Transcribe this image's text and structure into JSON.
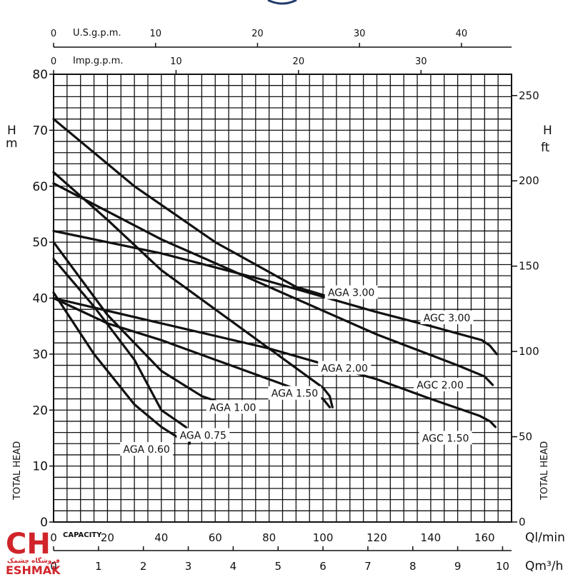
{
  "chart_data": {
    "type": "line",
    "x_unit_label": "Ql/min",
    "x_range": [
      0,
      170
    ],
    "x_ticks": [
      0,
      20,
      40,
      60,
      80,
      100,
      120,
      140,
      160
    ],
    "x_tick_labels": [
      "0",
      "20",
      "40",
      "60",
      "80",
      "100",
      "120",
      "140",
      "160"
    ],
    "capacity_label": "CAPACITY",
    "m3h_unit_label": "Qm³/h",
    "m3h_ticks": [
      0,
      1,
      2,
      3,
      4,
      5,
      6,
      7,
      8,
      9,
      10
    ],
    "m3h_tick_labels": [
      "0",
      "1",
      "2",
      "3",
      "4",
      "5",
      "6",
      "7",
      "8",
      "9",
      "10"
    ],
    "usgpm_label": "U.S.g.p.m.",
    "usgpm_ticks": [
      0,
      10,
      20,
      30,
      40
    ],
    "usgpm_tick_labels": [
      "0",
      "10",
      "20",
      "30",
      "40"
    ],
    "impgpm_label": "Imp.g.p.m.",
    "impgpm_ticks": [
      0,
      10,
      20,
      30
    ],
    "impgpm_tick_labels": [
      "0",
      "10",
      "20",
      "30"
    ],
    "y_range": [
      0,
      80
    ],
    "y_ticks": [
      0,
      10,
      20,
      30,
      40,
      50,
      60,
      70,
      80
    ],
    "y_tick_labels": [
      "0",
      "10",
      "20",
      "30",
      "40",
      "50",
      "60",
      "70",
      "80"
    ],
    "y_left_title_1": "H",
    "y_left_title_2": "m",
    "y_left_side_title": "TOTAL HEAD",
    "ft_ticks": [
      0,
      50,
      100,
      150,
      200,
      250
    ],
    "ft_tick_labels": [
      "0",
      "50",
      "100",
      "150",
      "200",
      "250"
    ],
    "y_right_title_1": "H",
    "y_right_title_2": "ft",
    "y_right_side_title": "TOTAL HEAD",
    "grid": true,
    "series": [
      {
        "name": "AGA 0.60",
        "x": [
          0,
          15,
          30,
          40,
          47.5
        ],
        "y": [
          41,
          30,
          21,
          17,
          14.7
        ]
      },
      {
        "name": "AGA 0.75",
        "x": [
          0,
          15,
          30,
          40,
          49,
          50.5,
          50.5
        ],
        "y": [
          47,
          38.5,
          29,
          20,
          17,
          16,
          14
        ]
      },
      {
        "name": "AGA 1.00",
        "x": [
          0,
          20,
          40,
          55,
          61,
          62.5
        ],
        "y": [
          50,
          37,
          27,
          22.5,
          21.5,
          20.5
        ]
      },
      {
        "name": "AGA 1.50",
        "x": [
          0,
          20,
          40,
          60,
          80,
          100,
          102.5
        ],
        "y": [
          40,
          35.5,
          32.5,
          29,
          25.5,
          22,
          20.5
        ]
      },
      {
        "name": "AGA 2.00",
        "x": [
          0,
          20,
          40,
          60,
          80,
          100,
          102.5,
          103.5
        ],
        "y": [
          62.5,
          54,
          45,
          38,
          31,
          24,
          22.5,
          20.5
        ]
      },
      {
        "name": "AGA 3.00",
        "x": [
          0,
          30,
          60,
          90,
          104
        ],
        "y": [
          72,
          60,
          50,
          42,
          40
        ]
      },
      {
        "name": "AGC 1.50",
        "x": [
          0,
          40,
          80,
          120,
          140,
          158,
          162,
          164
        ],
        "y": [
          40,
          35.5,
          31,
          25.5,
          22,
          19,
          18,
          17
        ]
      },
      {
        "name": "AGC 2.00",
        "x": [
          0,
          40,
          80,
          120,
          150,
          160,
          163
        ],
        "y": [
          60.5,
          50.5,
          42,
          33.5,
          28,
          26,
          24.5
        ]
      },
      {
        "name": "AGC 3.00",
        "x": [
          0,
          40,
          80,
          120,
          140,
          159,
          162,
          164.5
        ],
        "y": [
          52,
          48,
          43,
          37.5,
          35,
          32.5,
          31.5,
          30
        ]
      }
    ],
    "labels": [
      {
        "text": "AGA 0.60",
        "x": 34.5,
        "y": 13
      },
      {
        "text": "AGA 0.75",
        "x": 55.5,
        "y": 15.5
      },
      {
        "text": "AGA 1.00",
        "x": 66.5,
        "y": 20.5
      },
      {
        "text": "AGA 1.50",
        "x": 89.5,
        "y": 23
      },
      {
        "text": "AGA 2.00",
        "x": 108,
        "y": 27.5
      },
      {
        "text": "AGA 3.00",
        "x": 110.5,
        "y": 41
      },
      {
        "text": "AGC 1.50",
        "x": 145.5,
        "y": 15
      },
      {
        "text": "AGC 2.00",
        "x": 143.5,
        "y": 24.5
      },
      {
        "text": "AGC 3.00",
        "x": 146,
        "y": 36.5
      }
    ]
  },
  "brand": {
    "mark": "CH",
    "name": "ESHMAK",
    "subtitle": "فروشگاه چشمک",
    "color": "#d0242a"
  },
  "colors": {
    "line": "#111111",
    "grid": "#111111"
  }
}
